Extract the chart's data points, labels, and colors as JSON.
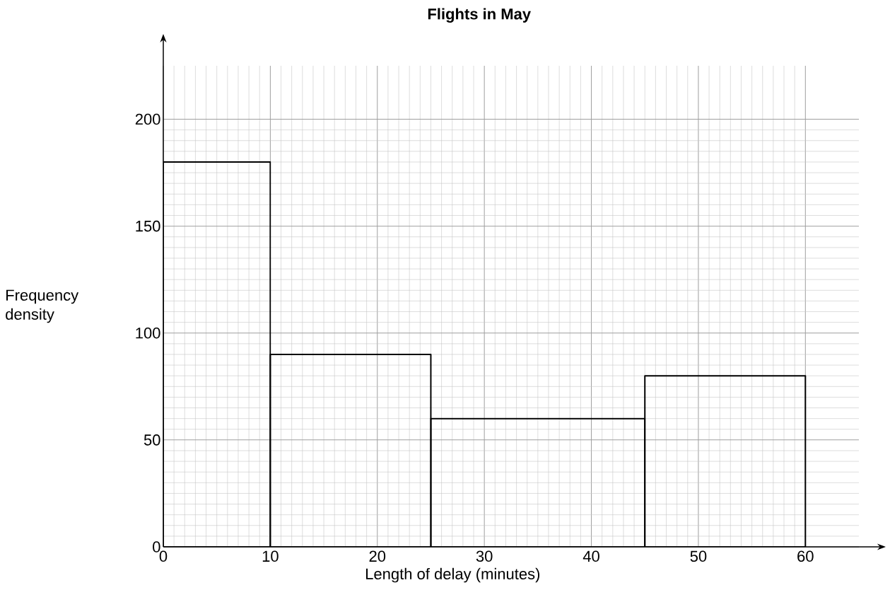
{
  "chart_data": {
    "type": "histogram",
    "title": "Flights in May",
    "xlabel": "Length of delay (minutes)",
    "ylabel": "Frequency density",
    "bins": [
      0,
      10,
      25,
      45,
      60
    ],
    "values": [
      180,
      90,
      60,
      80
    ],
    "color": "#000000",
    "xlim": [
      0,
      65
    ],
    "ylim": [
      0,
      225
    ],
    "xticks": [
      0,
      10,
      20,
      30,
      40,
      50,
      60
    ],
    "yticks": [
      0,
      50,
      100,
      150,
      200
    ],
    "grid": true
  }
}
